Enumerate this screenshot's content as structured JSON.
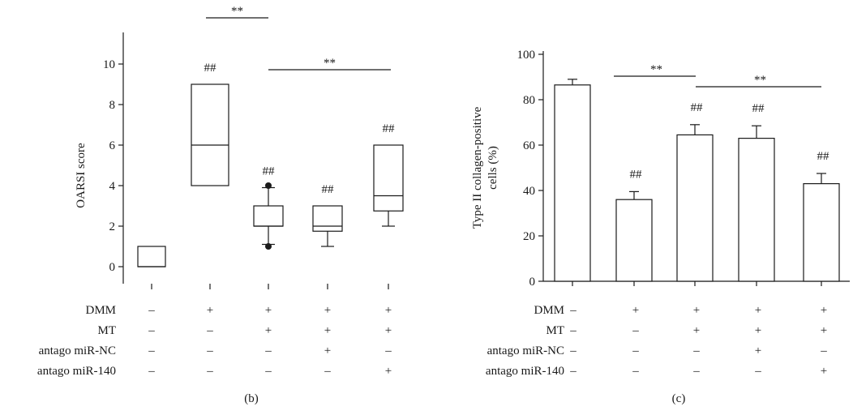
{
  "chart_data": [
    {
      "type": "box",
      "panel_label": "(b)",
      "ylabel": "OARSI score",
      "ylim": [
        -1,
        10
      ],
      "yticks": [
        0,
        2,
        4,
        6,
        8,
        10
      ],
      "groups": [
        {
          "whisker_low": 0,
          "q1": 0,
          "median": 0,
          "q3": 1,
          "whisker_high": 1,
          "outliers": [],
          "marker": ""
        },
        {
          "whisker_low": 4,
          "q1": 4,
          "median": 6,
          "q3": 9,
          "whisker_high": 9,
          "outliers": [],
          "marker": "##"
        },
        {
          "whisker_low": 1.1,
          "q1": 2,
          "median": 2,
          "q3": 3,
          "whisker_high": 3.9,
          "outliers": [
            1,
            4
          ],
          "marker": "##"
        },
        {
          "whisker_low": 1,
          "q1": 1.75,
          "median": 2,
          "q3": 3,
          "whisker_high": 3,
          "outliers": [],
          "marker": "##"
        },
        {
          "whisker_low": 2,
          "q1": 2.75,
          "median": 3.5,
          "q3": 6,
          "whisker_high": 6,
          "outliers": [],
          "marker": "##"
        }
      ],
      "significance": [
        {
          "from": 1,
          "to": 2,
          "label": "**"
        },
        {
          "from": 2,
          "to": 4,
          "label": "**"
        }
      ]
    },
    {
      "type": "bar",
      "panel_label": "(c)",
      "ylabel_lines": [
        "Type II collagen-positive",
        "cells (%)"
      ],
      "ylim": [
        0,
        100
      ],
      "yticks": [
        0,
        20,
        40,
        60,
        80,
        100
      ],
      "values": [
        86.5,
        36,
        64.5,
        63,
        43
      ],
      "errors": [
        2.5,
        3.5,
        4.5,
        5.5,
        4.5
      ],
      "markers": [
        "",
        "##",
        "##",
        "##",
        "##"
      ],
      "significance": [
        {
          "from": 1,
          "to": 2,
          "label": "**"
        },
        {
          "from": 2,
          "to": 4,
          "label": "**"
        }
      ]
    }
  ],
  "conditions": {
    "rows": [
      {
        "label": "DMM",
        "values": [
          "–",
          "+",
          "+",
          "+",
          "+"
        ]
      },
      {
        "label": "MT",
        "values": [
          "–",
          "–",
          "+",
          "+",
          "+"
        ]
      },
      {
        "label": "antago miR-NC",
        "values": [
          "–",
          "–",
          "–",
          "+",
          "–"
        ]
      },
      {
        "label": "antago miR-140",
        "values": [
          "–",
          "–",
          "–",
          "–",
          "+"
        ]
      }
    ]
  }
}
